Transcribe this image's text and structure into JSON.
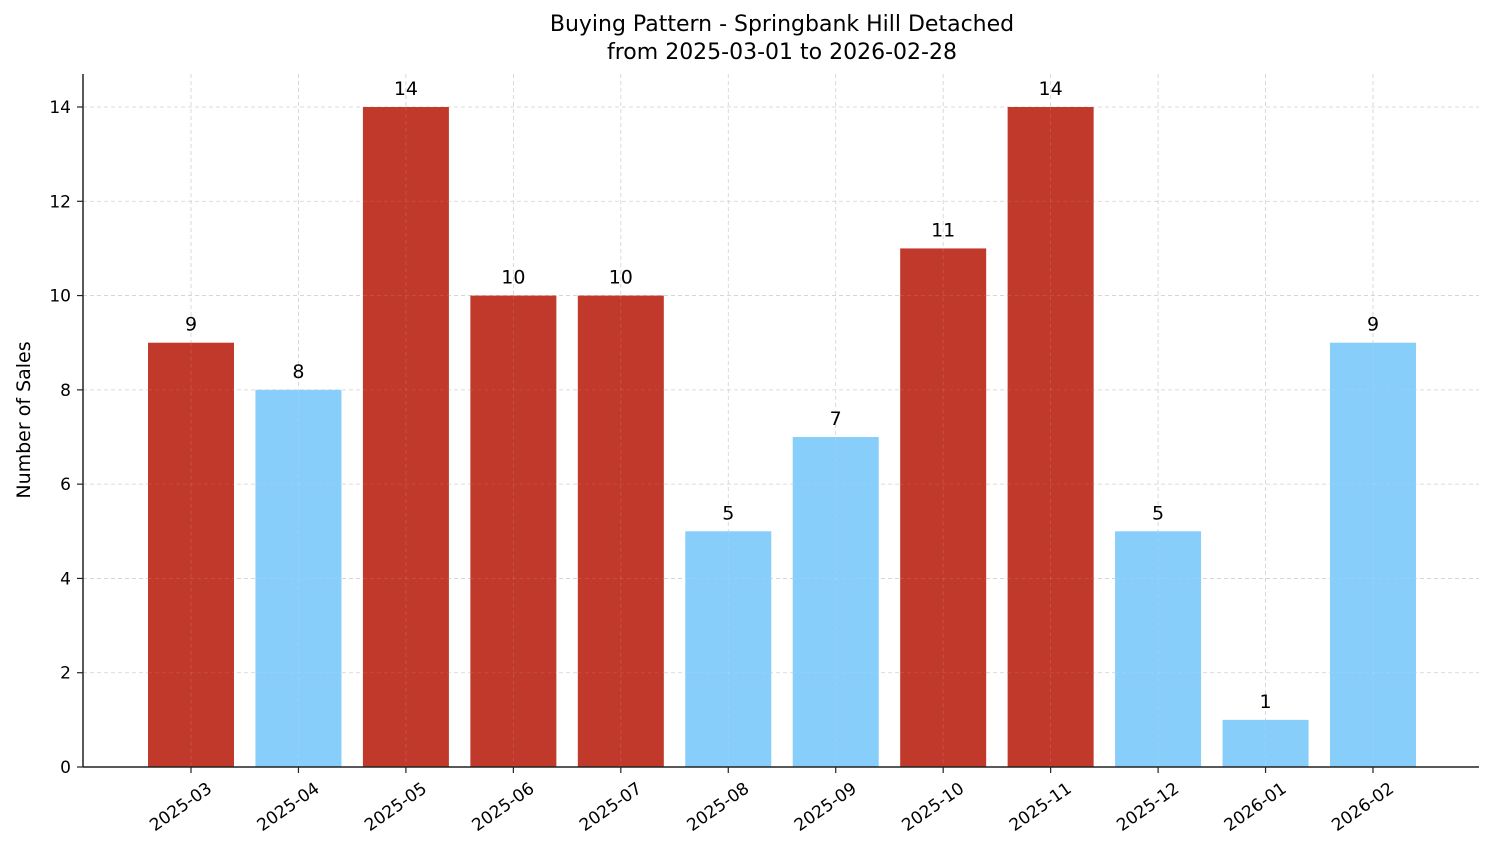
{
  "chart_data": {
    "type": "bar",
    "title": "Buying Pattern - Springbank Hill Detached",
    "subtitle": "from 2025-03-01 to 2026-02-28",
    "xlabel": "",
    "ylabel": "Number of Sales",
    "categories": [
      "2025-03",
      "2025-04",
      "2025-05",
      "2025-06",
      "2025-07",
      "2025-08",
      "2025-09",
      "2025-10",
      "2025-11",
      "2025-12",
      "2026-01",
      "2026-02"
    ],
    "values": [
      9,
      8,
      14,
      10,
      10,
      5,
      7,
      11,
      14,
      5,
      1,
      9
    ],
    "bar_colors": [
      "#c0392b",
      "#87cefa",
      "#c0392b",
      "#c0392b",
      "#c0392b",
      "#87cefa",
      "#87cefa",
      "#c0392b",
      "#c0392b",
      "#87cefa",
      "#87cefa",
      "#87cefa"
    ],
    "yticks": [
      0,
      2,
      4,
      6,
      8,
      10,
      12,
      14
    ],
    "ylim": [
      0,
      14.7
    ],
    "grid": true,
    "data_labels": true,
    "legend": null
  },
  "colors": {
    "high": "#c0392b",
    "low": "#87cefa",
    "grid": "#d0d0d0",
    "axis": "#222222"
  }
}
